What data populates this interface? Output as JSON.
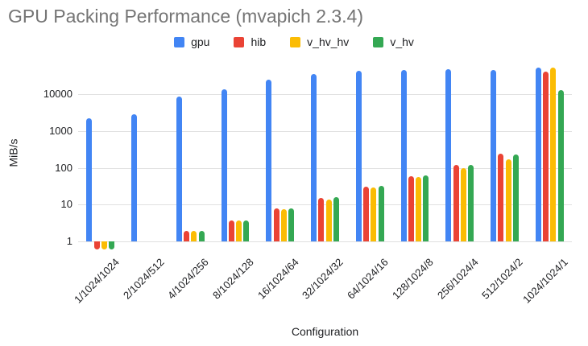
{
  "chart_data": {
    "type": "bar",
    "title": "GPU Packing Performance (mvapich 2.3.4)",
    "xlabel": "Configuration",
    "ylabel": "MiB/s",
    "y_scale": "log",
    "y_ticks": [
      1,
      10,
      100,
      1000,
      10000
    ],
    "ylim": [
      0.5,
      60000
    ],
    "grid": true,
    "legend_position": "top-center",
    "categories": [
      "1/1024/1024",
      "2/1024/512",
      "4/1024/256",
      "8/1024/128",
      "16/1024/64",
      "32/1024/32",
      "64/1024/16",
      "128/1024/8",
      "256/1024/4",
      "512/1024/2",
      "1024/1024/1"
    ],
    "series": [
      {
        "name": "gpu",
        "color": "#4285F4",
        "values": [
          2200,
          2800,
          8700,
          13500,
          25000,
          36000,
          44000,
          45000,
          48000,
          46000,
          52000
        ]
      },
      {
        "name": "hib",
        "color": "#EA4335",
        "values": [
          0.6,
          null,
          1.9,
          3.8,
          7.7,
          15,
          31,
          60,
          120,
          240,
          42000
        ]
      },
      {
        "name": "v_hv_hv",
        "color": "#FBBC04",
        "values": [
          0.6,
          null,
          1.9,
          3.7,
          7.6,
          14,
          29,
          55,
          100,
          170,
          53000
        ]
      },
      {
        "name": "v_hv",
        "color": "#34A853",
        "values": [
          0.6,
          null,
          1.9,
          3.8,
          7.8,
          16,
          32,
          62,
          120,
          230,
          13000
        ]
      }
    ]
  },
  "colors": {
    "title": "#757575",
    "text": "#202124",
    "gridline": "#e0e0e0",
    "background": "#ffffff"
  }
}
